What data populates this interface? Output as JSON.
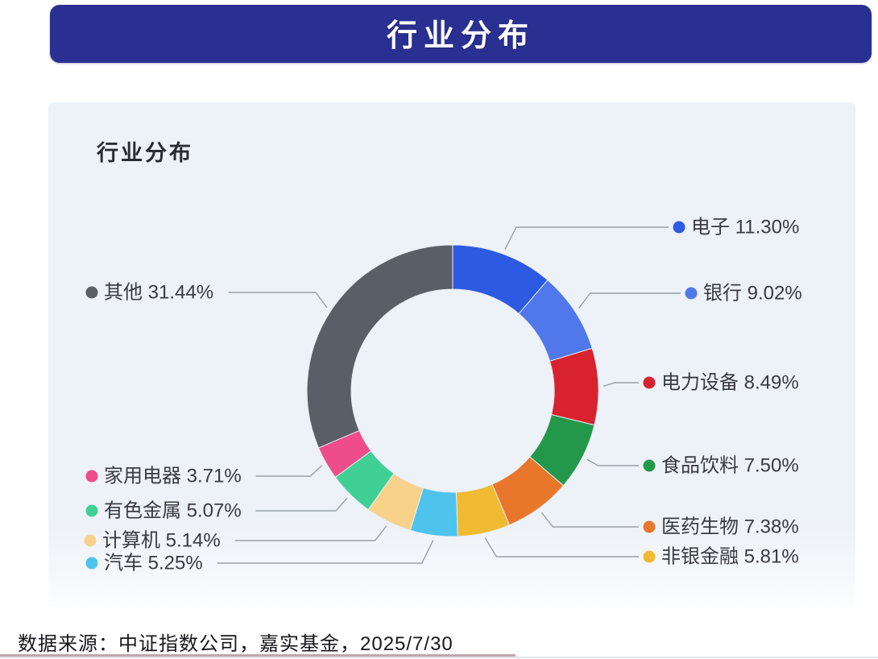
{
  "header": {
    "title": "行业分布"
  },
  "panel": {
    "title": "行业分布"
  },
  "footer": {
    "source": "数据来源：中证指数公司，嘉实基金，2025/7/30"
  },
  "theme": {
    "header_bg": "#2a3092",
    "card_bg": "#edf1f8",
    "label_text": "#3a3b42",
    "leader_line": "#9aa0a8"
  },
  "chart_data": {
    "type": "pie",
    "subtype": "donut",
    "title": "行业分布",
    "unit": "%",
    "start_angle_deg": 0,
    "direction": "clockwise",
    "legend_position": "callout-labels",
    "categories": [
      "电子",
      "银行",
      "电力设备",
      "食品饮料",
      "医药生物",
      "非银金融",
      "汽车",
      "计算机",
      "有色金属",
      "家用电器",
      "其他"
    ],
    "values": [
      11.3,
      9.02,
      8.49,
      7.5,
      7.38,
      5.81,
      5.25,
      5.14,
      5.07,
      3.71,
      31.44
    ],
    "slices": [
      {
        "label": "电子",
        "value": 11.3,
        "pct_label": "11.30%",
        "color": "#2d5ae2"
      },
      {
        "label": "银行",
        "value": 9.02,
        "pct_label": "9.02%",
        "color": "#5078ea"
      },
      {
        "label": "电力设备",
        "value": 8.49,
        "pct_label": "8.49%",
        "color": "#d8232f"
      },
      {
        "label": "食品饮料",
        "value": 7.5,
        "pct_label": "7.50%",
        "color": "#23984b"
      },
      {
        "label": "医药生物",
        "value": 7.38,
        "pct_label": "7.38%",
        "color": "#e8772c"
      },
      {
        "label": "非银金融",
        "value": 5.81,
        "pct_label": "5.81%",
        "color": "#f0ba33"
      },
      {
        "label": "汽车",
        "value": 5.25,
        "pct_label": "5.25%",
        "color": "#4ec3ee"
      },
      {
        "label": "计算机",
        "value": 5.14,
        "pct_label": "5.14%",
        "color": "#f8d28b"
      },
      {
        "label": "有色金属",
        "value": 5.07,
        "pct_label": "5.07%",
        "color": "#40d095"
      },
      {
        "label": "家用电器",
        "value": 3.71,
        "pct_label": "3.71%",
        "color": "#ee4c8a"
      },
      {
        "label": "其他",
        "value": 31.44,
        "pct_label": "31.44%",
        "color": "#5a5f67"
      }
    ]
  }
}
